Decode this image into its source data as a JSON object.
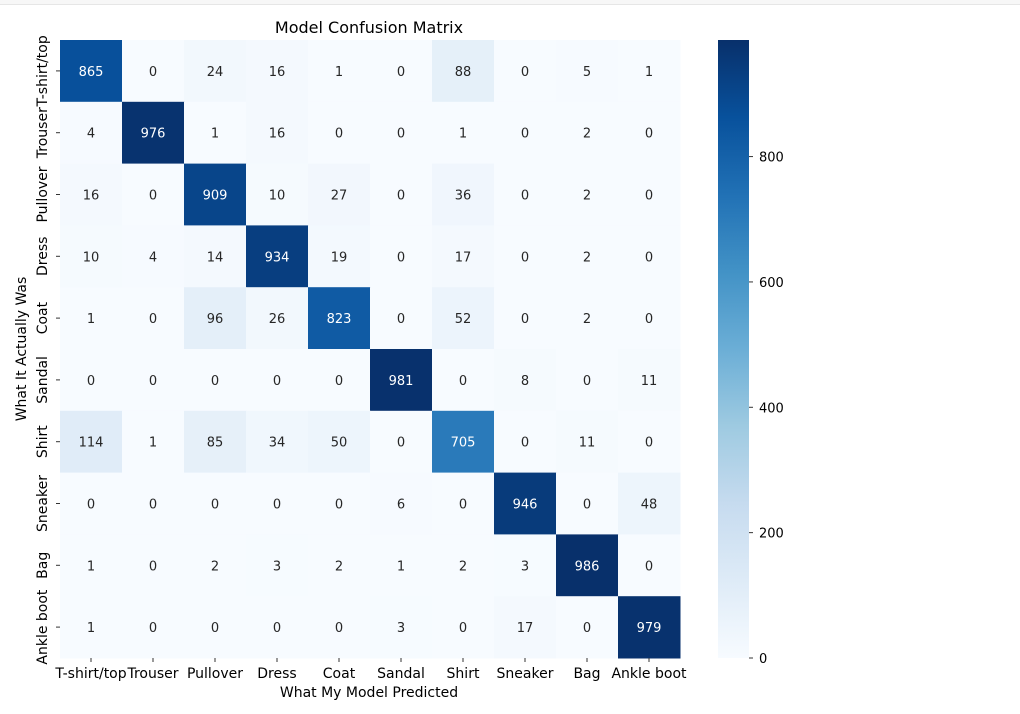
{
  "chart_data": {
    "type": "heatmap",
    "title": "Model Confusion Matrix",
    "xlabel": "What My Model Predicted",
    "ylabel": "What It Actually Was",
    "x_categories": [
      "T-shirt/top",
      "Trouser",
      "Pullover",
      "Dress",
      "Coat",
      "Sandal",
      "Shirt",
      "Sneaker",
      "Bag",
      "Ankle boot"
    ],
    "y_categories": [
      "T-shirt/top",
      "Trouser",
      "Pullover",
      "Dress",
      "Coat",
      "Sandal",
      "Shirt",
      "Sneaker",
      "Bag",
      "Ankle boot"
    ],
    "values": [
      [
        865,
        0,
        24,
        16,
        1,
        0,
        88,
        0,
        5,
        1
      ],
      [
        4,
        976,
        1,
        16,
        0,
        0,
        1,
        0,
        2,
        0
      ],
      [
        16,
        0,
        909,
        10,
        27,
        0,
        36,
        0,
        2,
        0
      ],
      [
        10,
        4,
        14,
        934,
        19,
        0,
        17,
        0,
        2,
        0
      ],
      [
        1,
        0,
        96,
        26,
        823,
        0,
        52,
        0,
        2,
        0
      ],
      [
        0,
        0,
        0,
        0,
        0,
        981,
        0,
        8,
        0,
        11
      ],
      [
        114,
        1,
        85,
        34,
        50,
        0,
        705,
        0,
        11,
        0
      ],
      [
        0,
        0,
        0,
        0,
        0,
        6,
        0,
        946,
        0,
        48
      ],
      [
        1,
        0,
        2,
        3,
        2,
        1,
        2,
        3,
        986,
        0
      ],
      [
        1,
        0,
        0,
        0,
        0,
        3,
        0,
        17,
        0,
        979
      ]
    ],
    "colormap": "Blues",
    "vmin": 0,
    "vmax": 986,
    "colorbar_ticks": [
      0,
      200,
      400,
      600,
      800
    ]
  }
}
